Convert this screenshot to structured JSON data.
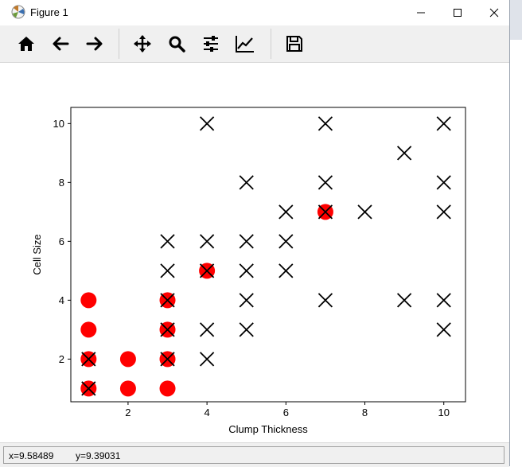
{
  "window": {
    "title": "Figure 1"
  },
  "toolbar": {
    "tools": [
      {
        "name": "home-icon"
      },
      {
        "name": "back-arrow-icon"
      },
      {
        "name": "forward-arrow-icon"
      },
      {
        "name": "pan-icon"
      },
      {
        "name": "zoom-icon"
      },
      {
        "name": "configure-subplots-icon"
      },
      {
        "name": "edit-axis-icon"
      },
      {
        "name": "save-icon"
      }
    ]
  },
  "status": {
    "x": "x=9.58489",
    "y": "y=9.39031"
  },
  "colors": {
    "malignant_marker": "#ff0000",
    "benign_marker": "#000000"
  },
  "chart_data": {
    "type": "scatter",
    "xlabel": "Clump Thickness",
    "ylabel": "Cell Size",
    "xlim": [
      0.55,
      10.55
    ],
    "ylim": [
      0.55,
      10.55
    ],
    "xticks": [
      2,
      4,
      6,
      8,
      10
    ],
    "yticks": [
      2,
      4,
      6,
      8,
      10
    ],
    "grid": false,
    "series": [
      {
        "marker": "o",
        "color": "#ff0000",
        "points": [
          [
            1,
            1
          ],
          [
            2,
            1
          ],
          [
            3,
            1
          ],
          [
            1,
            2
          ],
          [
            2,
            2
          ],
          [
            3,
            2
          ],
          [
            1,
            3
          ],
          [
            3,
            3
          ],
          [
            1,
            4
          ],
          [
            3,
            4
          ],
          [
            4,
            5
          ],
          [
            7,
            7
          ]
        ]
      },
      {
        "marker": "x",
        "color": "#000000",
        "points": [
          [
            1,
            1
          ],
          [
            1,
            2
          ],
          [
            3,
            2
          ],
          [
            4,
            2
          ],
          [
            3,
            3
          ],
          [
            4,
            3
          ],
          [
            5,
            3
          ],
          [
            3,
            4
          ],
          [
            5,
            4
          ],
          [
            7,
            4
          ],
          [
            9,
            4
          ],
          [
            10,
            4
          ],
          [
            10,
            3
          ],
          [
            3,
            5
          ],
          [
            4,
            5
          ],
          [
            5,
            5
          ],
          [
            6,
            5
          ],
          [
            3,
            6
          ],
          [
            4,
            6
          ],
          [
            5,
            6
          ],
          [
            6,
            6
          ],
          [
            6,
            7
          ],
          [
            7,
            7
          ],
          [
            8,
            7
          ],
          [
            10,
            7
          ],
          [
            5,
            8
          ],
          [
            7,
            8
          ],
          [
            10,
            8
          ],
          [
            9,
            9
          ],
          [
            4,
            10
          ],
          [
            7,
            10
          ],
          [
            10,
            10
          ]
        ]
      }
    ]
  }
}
